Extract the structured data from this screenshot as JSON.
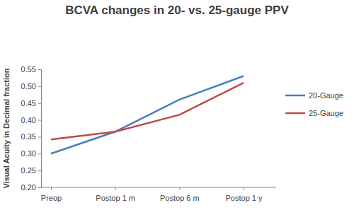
{
  "chart_data": {
    "type": "line",
    "title": "BCVA changes in 20- vs. 25-gauge PPV",
    "y_label": "Visual Acuity in Decimal fraction",
    "categories": [
      "Preop",
      "Postop 1 m",
      "Postop 6 m",
      "Postop 1 y"
    ],
    "series": [
      {
        "name": "20-Gauge",
        "color": "#4a7ebb",
        "values": [
          0.3,
          0.365,
          0.46,
          0.53
        ]
      },
      {
        "name": "25-Gauge",
        "color": "#be4b48",
        "values": [
          0.342,
          0.365,
          0.415,
          0.51
        ]
      }
    ],
    "ylim": [
      0.2,
      0.55
    ],
    "yticks": [
      {
        "value": 0.2,
        "label": "0.20"
      },
      0.25,
      {
        "value": 0.3,
        "label": "0.30"
      },
      0.35,
      {
        "value": 0.4,
        "label": "0.40"
      },
      0.45,
      {
        "value": 0.5,
        "label": "0.50"
      },
      0.55
    ],
    "grid": false,
    "legend": "right"
  }
}
